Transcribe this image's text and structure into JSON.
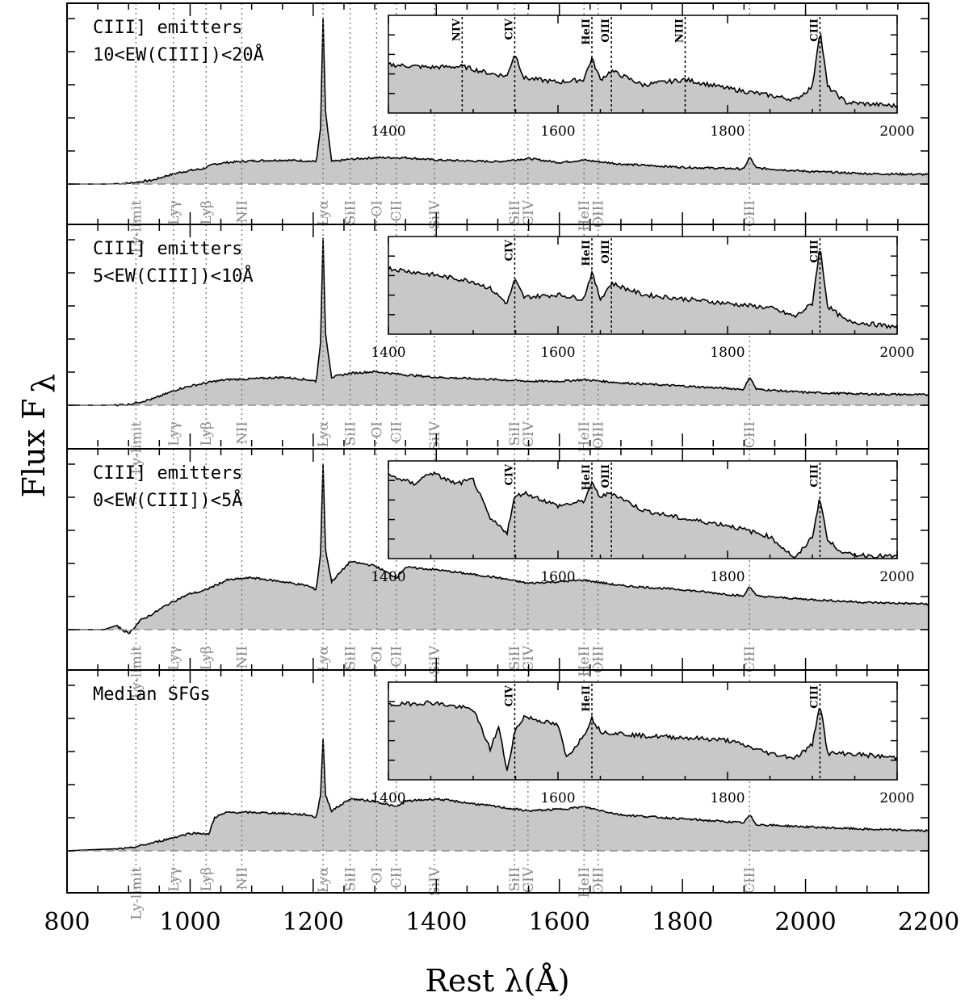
{
  "chart_data": {
    "type": "line",
    "xlabel": "Rest λ(Å)",
    "ylabel": "Flux F",
    "ylabel_subscript": "λ",
    "xlim": [
      800,
      2200
    ],
    "x_ticks": [
      "800",
      "1000",
      "1200",
      "1400",
      "1600",
      "1800",
      "2000",
      "2200"
    ],
    "x_tick_values": [
      800,
      1000,
      1200,
      1400,
      1600,
      1800,
      2000,
      2200
    ],
    "inset_xlim": [
      1400,
      2000
    ],
    "inset_x_ticks": [
      "1400",
      "1600",
      "1800",
      "2000"
    ],
    "inset_x_tick_values": [
      1400,
      1600,
      1800,
      2000
    ],
    "line_markers": [
      {
        "label": "Ly-limit",
        "wavelength": 912
      },
      {
        "label": "Lyγ",
        "wavelength": 973
      },
      {
        "label": "Lyβ",
        "wavelength": 1026
      },
      {
        "label": "NII",
        "wavelength": 1084
      },
      {
        "label": "Lyα",
        "wavelength": 1216
      },
      {
        "label": "SiII",
        "wavelength": 1260
      },
      {
        "label": "OI",
        "wavelength": 1303
      },
      {
        "label": "CII",
        "wavelength": 1335
      },
      {
        "label": "SiIV",
        "wavelength": 1397
      },
      {
        "label": "SiII",
        "wavelength": 1527
      },
      {
        "label": "CIV",
        "wavelength": 1549
      },
      {
        "label": "HeII",
        "wavelength": 1640
      },
      {
        "label": "OIII",
        "wavelength": 1663
      },
      {
        "label": "CIII",
        "wavelength": 1909
      }
    ],
    "panels": [
      {
        "name": "CIII] emitters 10<EW(CIII])<20Å",
        "label_line1": "CIII] emitters",
        "label_line2": "10<EW(CIII])<20Å",
        "inset_lines": [
          {
            "label": "NIV",
            "wavelength": 1487
          },
          {
            "label": "CIV",
            "wavelength": 1549
          },
          {
            "label": "HeII",
            "wavelength": 1640
          },
          {
            "label": "OIII",
            "wavelength": 1663
          },
          {
            "label": "NIII",
            "wavelength": 1750
          },
          {
            "label": "CIII",
            "wavelength": 1909
          }
        ],
        "main_spectrum": {
          "wavelength": [
            800,
            860,
            900,
            940,
            960,
            980,
            1000,
            1020,
            1040,
            1060,
            1100,
            1150,
            1190,
            1205,
            1212,
            1216,
            1220,
            1230,
            1260,
            1300,
            1350,
            1400,
            1500,
            1549,
            1600,
            1640,
            1700,
            1800,
            1900,
            1909,
            1920,
            2000,
            2100,
            2200
          ],
          "relative_flux": [
            0.0,
            0.0,
            0.01,
            0.05,
            0.1,
            0.14,
            0.17,
            0.19,
            0.25,
            0.27,
            0.29,
            0.3,
            0.29,
            0.28,
            0.7,
            2.08,
            0.9,
            0.28,
            0.31,
            0.33,
            0.33,
            0.3,
            0.28,
            0.32,
            0.27,
            0.3,
            0.25,
            0.21,
            0.19,
            0.34,
            0.2,
            0.16,
            0.13,
            0.12
          ]
        },
        "inset_spectrum": {
          "wavelength": [
            1400,
            1450,
            1487,
            1520,
            1540,
            1549,
            1560,
            1600,
            1630,
            1640,
            1650,
            1663,
            1700,
            1750,
            1800,
            1850,
            1880,
            1900,
            1909,
            1918,
            1940,
            2000
          ],
          "relative_flux": [
            0.55,
            0.52,
            0.53,
            0.45,
            0.42,
            0.68,
            0.4,
            0.35,
            0.38,
            0.62,
            0.38,
            0.48,
            0.32,
            0.38,
            0.28,
            0.2,
            0.15,
            0.3,
            0.95,
            0.3,
            0.12,
            0.08
          ]
        }
      },
      {
        "name": "CIII] emitters 5<EW(CIII])<10Å",
        "label_line1": "CIII] emitters",
        "label_line2": "5<EW(CIII])<10Å",
        "inset_lines": [
          {
            "label": "CIV",
            "wavelength": 1549
          },
          {
            "label": "HeII",
            "wavelength": 1640
          },
          {
            "label": "OIII",
            "wavelength": 1663
          },
          {
            "label": "CIII",
            "wavelength": 1909
          }
        ],
        "main_spectrum": {
          "wavelength": [
            800,
            860,
            900,
            940,
            960,
            980,
            1000,
            1020,
            1040,
            1060,
            1100,
            1150,
            1190,
            1205,
            1212,
            1216,
            1220,
            1230,
            1260,
            1300,
            1350,
            1400,
            1500,
            1549,
            1600,
            1640,
            1700,
            1800,
            1900,
            1909,
            1920,
            2000,
            2100,
            2200
          ],
          "relative_flux": [
            0.0,
            0.0,
            0.01,
            0.08,
            0.14,
            0.2,
            0.24,
            0.27,
            0.3,
            0.32,
            0.33,
            0.35,
            0.32,
            0.3,
            0.8,
            2.08,
            0.9,
            0.35,
            0.4,
            0.42,
            0.38,
            0.35,
            0.32,
            0.3,
            0.3,
            0.32,
            0.28,
            0.24,
            0.2,
            0.36,
            0.2,
            0.16,
            0.14,
            0.13
          ]
        },
        "inset_spectrum": {
          "wavelength": [
            1400,
            1450,
            1500,
            1520,
            1540,
            1549,
            1560,
            1600,
            1630,
            1640,
            1650,
            1663,
            1700,
            1750,
            1800,
            1850,
            1880,
            1900,
            1909,
            1918,
            1940,
            2000
          ],
          "relative_flux": [
            0.75,
            0.68,
            0.6,
            0.52,
            0.35,
            0.62,
            0.42,
            0.45,
            0.4,
            0.7,
            0.4,
            0.58,
            0.45,
            0.4,
            0.35,
            0.3,
            0.2,
            0.35,
            1.0,
            0.32,
            0.15,
            0.08
          ]
        }
      },
      {
        "name": "CIII] emitters 0<EW(CIII])<5Å",
        "label_line1": "CIII] emitters",
        "label_line2": "0<EW(CIII])<5Å",
        "inset_lines": [
          {
            "label": "CIV",
            "wavelength": 1549
          },
          {
            "label": "HeII",
            "wavelength": 1640
          },
          {
            "label": "OIII",
            "wavelength": 1663
          },
          {
            "label": "CIII",
            "wavelength": 1909
          }
        ],
        "main_spectrum": {
          "wavelength": [
            800,
            860,
            880,
            900,
            920,
            940,
            960,
            980,
            1000,
            1020,
            1040,
            1060,
            1100,
            1150,
            1190,
            1205,
            1212,
            1216,
            1220,
            1230,
            1260,
            1300,
            1335,
            1350,
            1400,
            1500,
            1549,
            1600,
            1640,
            1700,
            1800,
            1900,
            1909,
            1920,
            2000,
            2100,
            2200
          ],
          "relative_flux": [
            0.0,
            0.0,
            0.05,
            -0.05,
            0.12,
            0.2,
            0.3,
            0.38,
            0.45,
            0.48,
            0.55,
            0.62,
            0.65,
            0.6,
            0.55,
            0.5,
            0.95,
            2.08,
            1.0,
            0.6,
            0.85,
            0.8,
            0.65,
            0.78,
            0.75,
            0.65,
            0.58,
            0.6,
            0.62,
            0.55,
            0.5,
            0.42,
            0.55,
            0.42,
            0.38,
            0.34,
            0.32
          ]
        },
        "inset_spectrum": {
          "wavelength": [
            1400,
            1430,
            1450,
            1480,
            1500,
            1520,
            1540,
            1549,
            1560,
            1600,
            1630,
            1640,
            1650,
            1663,
            1700,
            1750,
            1800,
            1850,
            1880,
            1900,
            1909,
            1918,
            1940,
            2000
          ],
          "relative_flux": [
            0.95,
            0.85,
            0.98,
            0.85,
            0.9,
            0.45,
            0.3,
            0.7,
            0.75,
            0.6,
            0.65,
            0.85,
            0.7,
            0.75,
            0.55,
            0.45,
            0.38,
            0.25,
            0.0,
            0.25,
            0.7,
            0.2,
            0.05,
            0.02
          ]
        }
      },
      {
        "name": "Median SFGs",
        "label_line1": "Median SFGs",
        "label_line2": "",
        "inset_lines": [
          {
            "label": "CIV",
            "wavelength": 1549
          },
          {
            "label": "HeII",
            "wavelength": 1640
          },
          {
            "label": "CIII",
            "wavelength": 1909
          }
        ],
        "main_spectrum": {
          "wavelength": [
            800,
            860,
            900,
            940,
            960,
            980,
            1000,
            1020,
            1030,
            1040,
            1060,
            1100,
            1150,
            1190,
            1205,
            1212,
            1216,
            1220,
            1230,
            1260,
            1300,
            1335,
            1350,
            1400,
            1500,
            1549,
            1600,
            1640,
            1700,
            1800,
            1900,
            1909,
            1920,
            2000,
            2100,
            2200
          ],
          "relative_flux": [
            0.0,
            0.02,
            0.03,
            0.1,
            0.14,
            0.18,
            0.22,
            0.22,
            0.2,
            0.42,
            0.48,
            0.48,
            0.47,
            0.45,
            0.42,
            0.7,
            1.4,
            0.7,
            0.5,
            0.65,
            0.62,
            0.55,
            0.62,
            0.65,
            0.55,
            0.5,
            0.52,
            0.55,
            0.45,
            0.4,
            0.35,
            0.45,
            0.33,
            0.3,
            0.27,
            0.25
          ]
        },
        "inset_spectrum": {
          "wavelength": [
            1400,
            1450,
            1500,
            1520,
            1530,
            1540,
            1549,
            1560,
            1600,
            1610,
            1630,
            1640,
            1650,
            1700,
            1750,
            1800,
            1850,
            1880,
            1900,
            1909,
            1918,
            1940,
            2000
          ],
          "relative_flux": [
            0.85,
            0.88,
            0.8,
            0.35,
            0.6,
            0.1,
            0.55,
            0.72,
            0.62,
            0.25,
            0.5,
            0.7,
            0.55,
            0.5,
            0.48,
            0.45,
            0.3,
            0.25,
            0.4,
            0.88,
            0.3,
            0.3,
            0.25
          ]
        }
      }
    ]
  }
}
